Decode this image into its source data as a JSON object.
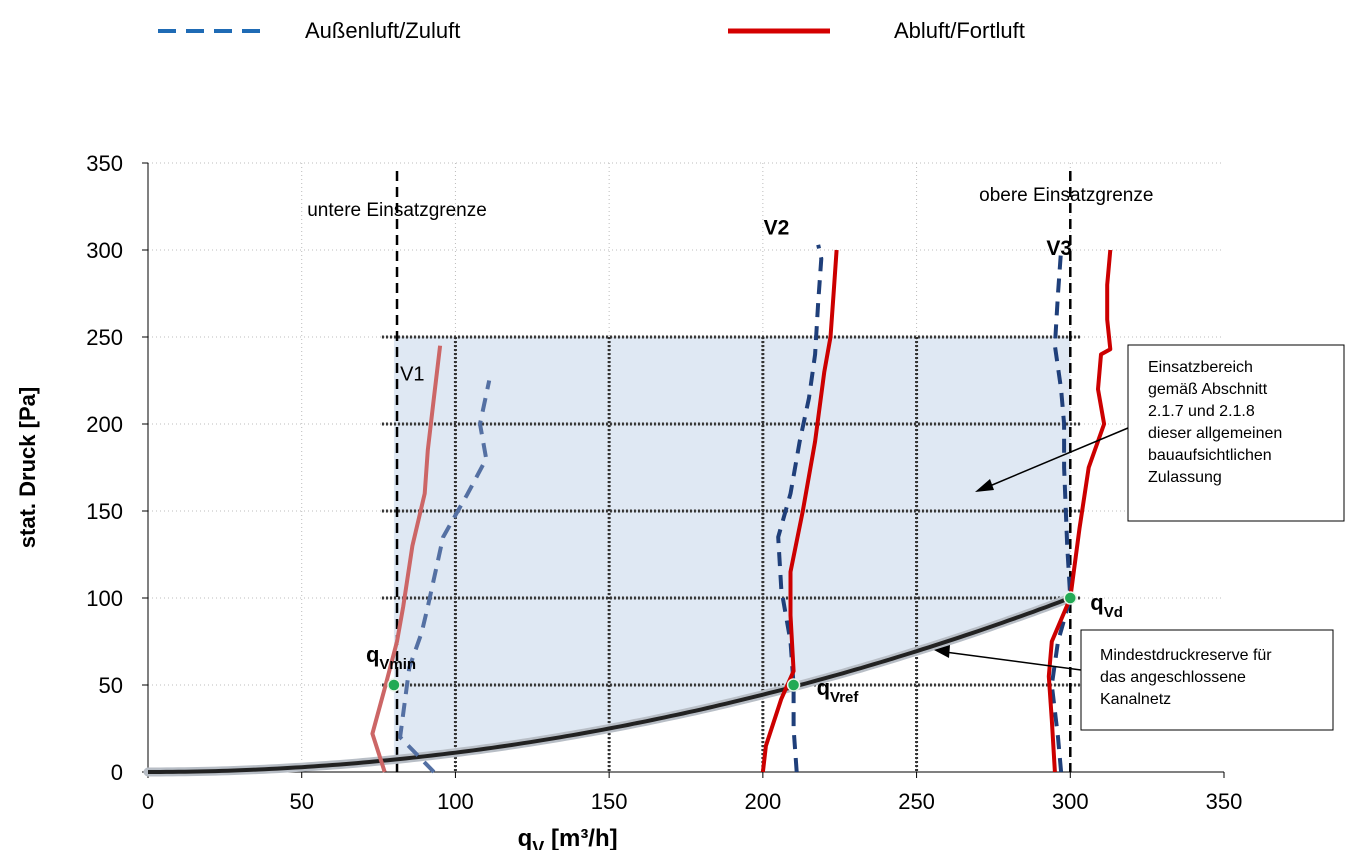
{
  "chart_data": {
    "type": "line",
    "xlabel": "q",
    "xlabel_sub": "V",
    "xlabel_unit": "[m³/h]",
    "ylabel": "stat. Druck [Pa]",
    "xlim": [
      0,
      350
    ],
    "ylim": [
      0,
      350
    ],
    "x_ticks": [
      "0",
      "50",
      "100",
      "150",
      "200",
      "250",
      "300",
      "350"
    ],
    "y_ticks": [
      "0",
      "50",
      "100",
      "150",
      "200",
      "250",
      "300",
      "350"
    ],
    "grid": true,
    "legend_position": "top",
    "legend": [
      {
        "name": "Außenluft/Zuluft",
        "style": "dashed",
        "color": "#1f6bb5"
      },
      {
        "name": "Abluft/Fortluft",
        "style": "solid",
        "color": "#d40000"
      }
    ],
    "colors": {
      "supply": "#1f3f7a",
      "supply_v1": "#5470a3",
      "exhaust": "#cc0000",
      "exhaust_v1": "#cc6666",
      "operating_area": "#dfe8f3",
      "point": "#22aa55"
    },
    "series": [
      {
        "name": "Außenluft/Zuluft",
        "curve": "V1",
        "points": [
          [
            93,
            0
          ],
          [
            82,
            20
          ],
          [
            85,
            60
          ],
          [
            89,
            80
          ],
          [
            91,
            95
          ],
          [
            96,
            135
          ],
          [
            104,
            160
          ],
          [
            110,
            180
          ],
          [
            108,
            200
          ],
          [
            111,
            225
          ]
        ]
      },
      {
        "name": "Abluft/Fortluft",
        "curve": "V1",
        "points": [
          [
            77,
            0
          ],
          [
            73,
            22
          ],
          [
            77,
            48
          ],
          [
            81,
            75
          ],
          [
            83,
            95
          ],
          [
            86,
            130
          ],
          [
            90,
            160
          ],
          [
            91,
            185
          ],
          [
            93,
            215
          ],
          [
            95,
            245
          ]
        ]
      },
      {
        "name": "Außenluft/Zuluft",
        "curve": "V2",
        "points": [
          [
            211,
            0
          ],
          [
            210,
            25
          ],
          [
            210,
            50
          ],
          [
            209,
            75
          ],
          [
            206,
            105
          ],
          [
            205,
            135
          ],
          [
            209,
            160
          ],
          [
            212,
            190
          ],
          [
            215,
            215
          ],
          [
            217,
            240
          ],
          [
            218,
            270
          ],
          [
            219,
            295
          ],
          [
            218,
            303
          ]
        ]
      },
      {
        "name": "Abluft/Fortluft",
        "curve": "V2",
        "points": [
          [
            200,
            0
          ],
          [
            201,
            15
          ],
          [
            206,
            42
          ],
          [
            210,
            58
          ],
          [
            209,
            90
          ],
          [
            209,
            115
          ],
          [
            213,
            150
          ],
          [
            217,
            190
          ],
          [
            220,
            230
          ],
          [
            222,
            250
          ],
          [
            223,
            275
          ],
          [
            224,
            300
          ]
        ]
      },
      {
        "name": "Außenluft/Zuluft",
        "curve": "V3",
        "points": [
          [
            297,
            0
          ],
          [
            296,
            20
          ],
          [
            294,
            50
          ],
          [
            296,
            75
          ],
          [
            300,
            100
          ],
          [
            299,
            130
          ],
          [
            298,
            175
          ],
          [
            298,
            200
          ],
          [
            297,
            220
          ],
          [
            295,
            245
          ],
          [
            296,
            275
          ],
          [
            297,
            300
          ]
        ]
      },
      {
        "name": "Abluft/Fortluft",
        "curve": "V3",
        "points": [
          [
            295,
            0
          ],
          [
            294,
            30
          ],
          [
            293,
            55
          ],
          [
            294,
            75
          ],
          [
            300,
            100
          ],
          [
            303,
            140
          ],
          [
            306,
            175
          ],
          [
            311,
            200
          ],
          [
            309,
            220
          ],
          [
            310,
            240
          ],
          [
            313,
            243
          ],
          [
            312,
            260
          ],
          [
            312,
            280
          ],
          [
            313,
            300
          ]
        ]
      }
    ],
    "system_curve": {
      "coefficient": 0.001111,
      "x_max": 300
    },
    "limits": [
      {
        "x": 81,
        "label": "untere Einsatzgrenze"
      },
      {
        "x": 300,
        "label": "obere Einsatzgrenze"
      }
    ],
    "operating_area": {
      "x": [
        80,
        300
      ],
      "y_top": 250,
      "label_lines": [
        "Einsatzbereich",
        "gemäß Abschnitt",
        "2.1.7 und 2.1.8",
        "dieser allgemeinen",
        "bauaufsichtlichen",
        "Zulassung"
      ]
    },
    "reserve_label_lines": [
      "Mindestdruckreserve für",
      "das angeschlossene",
      "Kanalnetz"
    ],
    "curve_labels": [
      {
        "text": "V1",
        "x": 82,
        "y": 225
      },
      {
        "text": "V2",
        "x": 210,
        "y": 309
      },
      {
        "text": "V3",
        "x": 302,
        "y": 297
      }
    ],
    "points": [
      {
        "label": "q",
        "sub": "Vmin",
        "x": 80,
        "y": 50
      },
      {
        "label": "q",
        "sub": "Vref",
        "x": 210,
        "y": 50
      },
      {
        "label": "q",
        "sub": "Vd",
        "x": 300,
        "y": 100
      }
    ]
  }
}
